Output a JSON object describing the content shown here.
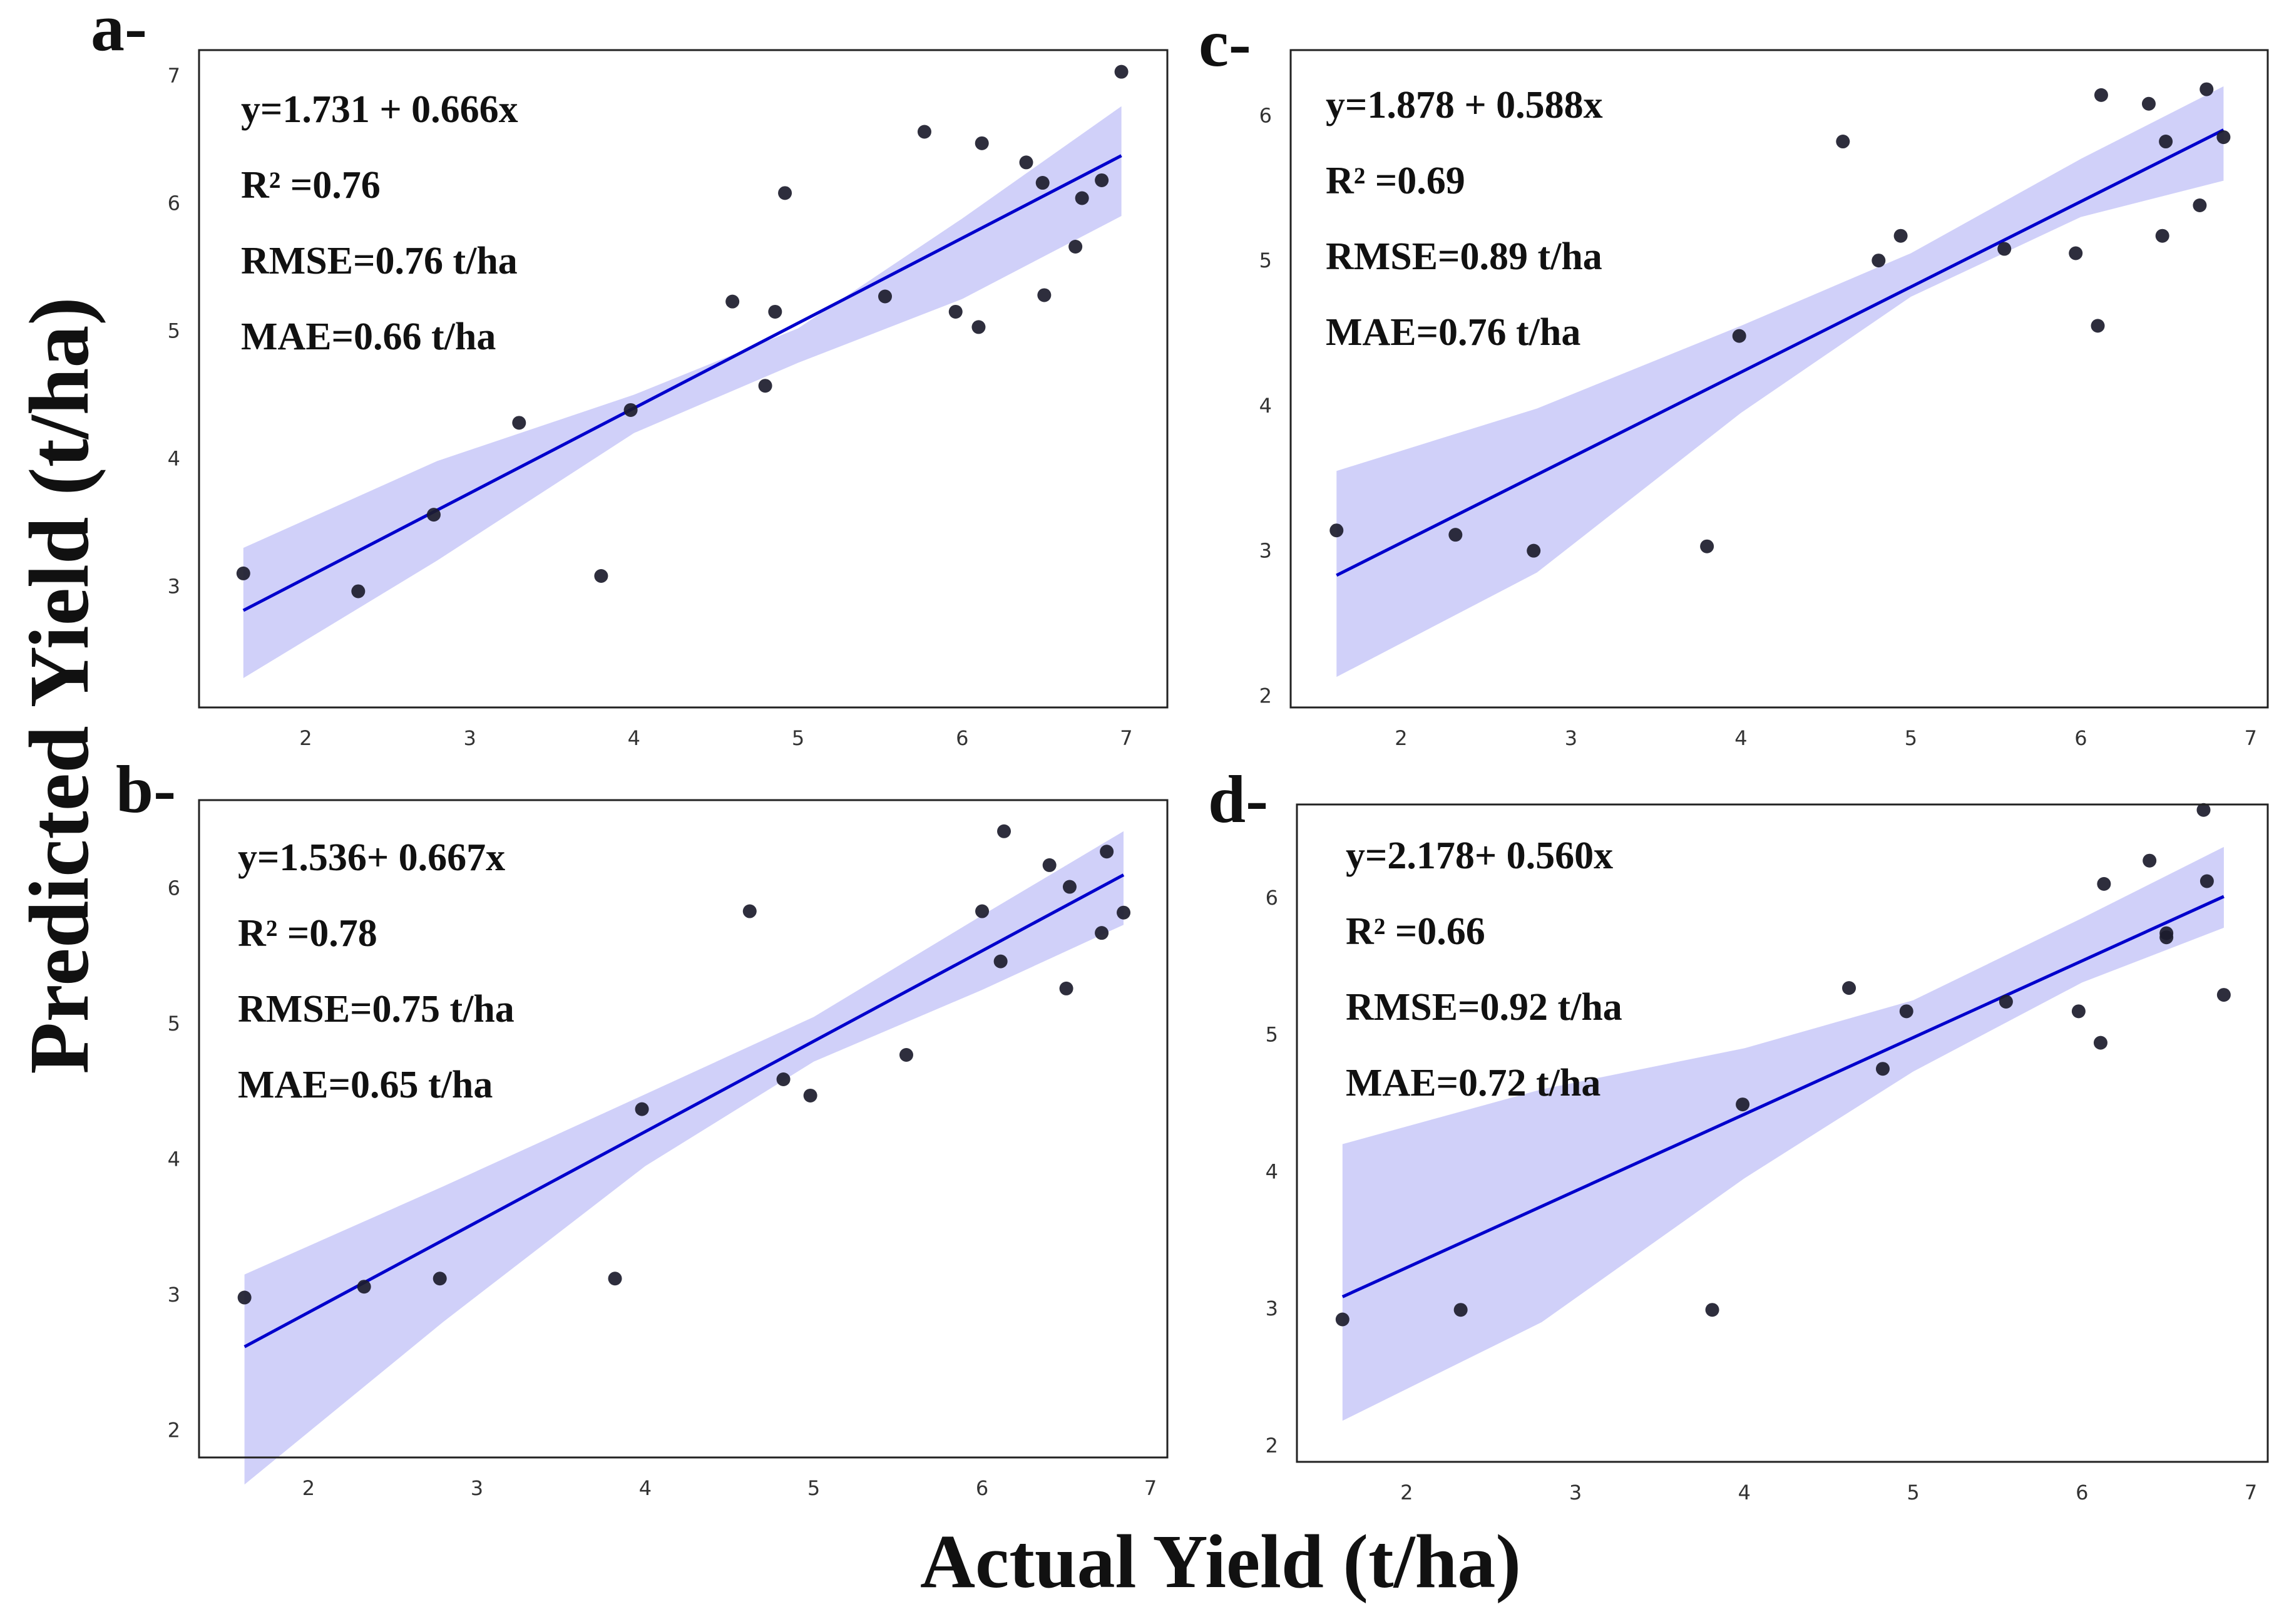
{
  "figure": {
    "xlabel": "Actual Yield (t/ha)",
    "ylabel": "Predicted Yield (t/ha)",
    "colors": {
      "line": "#0000cc",
      "band": "#c8c8f8",
      "point": "#1c1c2c",
      "frame": "#222222"
    }
  },
  "chart_data": [
    {
      "type": "scatter",
      "panel_label": "a-",
      "equation": "y=1.731 + 0.666x",
      "r2": "R² =0.76",
      "rmse": "RMSE=0.76 t/ha",
      "mae": "MAE=0.66 t/ha",
      "xlim": [
        1.35,
        7.25
      ],
      "ylim": [
        2.05,
        7.2
      ],
      "xticks": [
        2,
        3,
        4,
        5,
        6,
        7
      ],
      "yticks": [
        3,
        4,
        5,
        6,
        7
      ],
      "fit": {
        "intercept": 1.731,
        "slope": 0.666
      },
      "band": {
        "x": [
          1.62,
          2.8,
          4.0,
          5.0,
          6.0,
          6.97
        ],
        "upper": [
          3.3,
          3.98,
          4.5,
          5.02,
          5.88,
          6.76
        ],
        "lower": [
          2.28,
          3.2,
          4.2,
          4.75,
          5.25,
          5.9
        ]
      },
      "points": [
        [
          1.62,
          3.1
        ],
        [
          2.32,
          2.96
        ],
        [
          2.78,
          3.56
        ],
        [
          3.3,
          4.28
        ],
        [
          3.8,
          3.08
        ],
        [
          3.98,
          4.38
        ],
        [
          4.6,
          5.23
        ],
        [
          4.8,
          4.57
        ],
        [
          4.86,
          5.15
        ],
        [
          4.92,
          6.08
        ],
        [
          5.53,
          5.27
        ],
        [
          5.77,
          6.56
        ],
        [
          5.96,
          5.15
        ],
        [
          6.1,
          5.03
        ],
        [
          6.12,
          6.47
        ],
        [
          6.39,
          6.32
        ],
        [
          6.49,
          6.16
        ],
        [
          6.5,
          5.28
        ],
        [
          6.69,
          5.66
        ],
        [
          6.73,
          6.04
        ],
        [
          6.85,
          6.18
        ],
        [
          6.97,
          7.03
        ]
      ]
    },
    {
      "type": "scatter",
      "panel_label": "b-",
      "equation": "y=1.536+ 0.667x",
      "r2": "R² =0.78",
      "rmse": "RMSE=0.75 t/ha",
      "mae": "MAE=0.65 t/ha",
      "xlim": [
        1.35,
        7.1
      ],
      "ylim": [
        1.8,
        6.65
      ],
      "xticks": [
        2,
        3,
        4,
        5,
        6,
        7
      ],
      "yticks": [
        2,
        3,
        4,
        5,
        6
      ],
      "fit": {
        "intercept": 1.536,
        "slope": 0.667
      },
      "band": {
        "x": [
          1.62,
          2.8,
          4.0,
          5.0,
          6.0,
          6.84
        ],
        "upper": [
          3.15,
          3.8,
          4.48,
          5.05,
          5.8,
          6.42
        ],
        "lower": [
          1.6,
          2.8,
          3.95,
          4.72,
          5.25,
          5.73
        ]
      },
      "points": [
        [
          1.62,
          2.98
        ],
        [
          2.33,
          3.06
        ],
        [
          2.78,
          3.12
        ],
        [
          3.82,
          3.12
        ],
        [
          3.98,
          4.37
        ],
        [
          4.62,
          5.83
        ],
        [
          4.82,
          4.59
        ],
        [
          4.98,
          4.47
        ],
        [
          5.55,
          4.77
        ],
        [
          6.0,
          5.83
        ],
        [
          6.11,
          5.46
        ],
        [
          6.13,
          6.42
        ],
        [
          6.4,
          6.17
        ],
        [
          6.5,
          5.26
        ],
        [
          6.52,
          6.01
        ],
        [
          6.71,
          5.67
        ],
        [
          6.74,
          6.27
        ],
        [
          6.84,
          5.82
        ]
      ]
    },
    {
      "type": "scatter",
      "panel_label": "c-",
      "equation": "y=1.878 + 0.588x",
      "r2": "R² =0.69",
      "rmse": "RMSE=0.89 t/ha",
      "mae": "MAE=0.76 t/ha",
      "xlim": [
        1.35,
        7.1
      ],
      "ylim": [
        1.92,
        6.45
      ],
      "xticks": [
        2,
        3,
        4,
        5,
        6,
        7
      ],
      "yticks": [
        2,
        3,
        4,
        5,
        6
      ],
      "fit": {
        "intercept": 1.878,
        "slope": 0.588
      },
      "band": {
        "x": [
          1.62,
          2.8,
          4.0,
          5.0,
          6.0,
          6.84
        ],
        "upper": [
          3.55,
          3.98,
          4.55,
          5.05,
          5.7,
          6.2
        ],
        "lower": [
          2.13,
          2.85,
          3.95,
          4.75,
          5.3,
          5.55
        ]
      },
      "points": [
        [
          1.62,
          3.14
        ],
        [
          2.32,
          3.11
        ],
        [
          2.78,
          3.0
        ],
        [
          3.8,
          3.03
        ],
        [
          3.99,
          4.48
        ],
        [
          4.6,
          5.82
        ],
        [
          4.81,
          5.0
        ],
        [
          4.94,
          5.17
        ],
        [
          5.55,
          5.08
        ],
        [
          5.97,
          5.05
        ],
        [
          6.1,
          4.55
        ],
        [
          6.12,
          6.14
        ],
        [
          6.4,
          6.08
        ],
        [
          6.48,
          5.17
        ],
        [
          6.5,
          5.82
        ],
        [
          6.7,
          5.38
        ],
        [
          6.74,
          6.18
        ],
        [
          6.84,
          5.85
        ]
      ]
    },
    {
      "type": "scatter",
      "panel_label": "d-",
      "equation": "y=2.178+ 0.560x",
      "r2": "R² =0.66",
      "rmse": "RMSE=0.92 t/ha",
      "mae": "MAE=0.72 t/ha",
      "xlim": [
        1.35,
        7.1
      ],
      "ylim": [
        1.88,
        6.68
      ],
      "xticks": [
        2,
        3,
        4,
        5,
        6,
        7
      ],
      "yticks": [
        2,
        3,
        4,
        5,
        6
      ],
      "fit": {
        "intercept": 2.178,
        "slope": 0.56
      },
      "band": {
        "x": [
          1.62,
          2.8,
          4.0,
          5.0,
          6.0,
          6.84
        ],
        "upper": [
          4.2,
          4.6,
          4.9,
          5.25,
          5.85,
          6.37
        ],
        "lower": [
          2.18,
          2.9,
          3.95,
          4.73,
          5.38,
          5.78
        ]
      },
      "points": [
        [
          1.62,
          2.92
        ],
        [
          2.32,
          2.99
        ],
        [
          3.81,
          2.99
        ],
        [
          3.99,
          4.49
        ],
        [
          4.62,
          5.34
        ],
        [
          4.82,
          4.75
        ],
        [
          4.96,
          5.17
        ],
        [
          5.55,
          5.24
        ],
        [
          5.98,
          5.17
        ],
        [
          6.11,
          4.94
        ],
        [
          6.13,
          6.1
        ],
        [
          6.4,
          6.27
        ],
        [
          6.5,
          5.71
        ],
        [
          6.5,
          5.74
        ],
        [
          6.72,
          6.64
        ],
        [
          6.74,
          6.12
        ],
        [
          6.84,
          5.29
        ]
      ]
    }
  ]
}
